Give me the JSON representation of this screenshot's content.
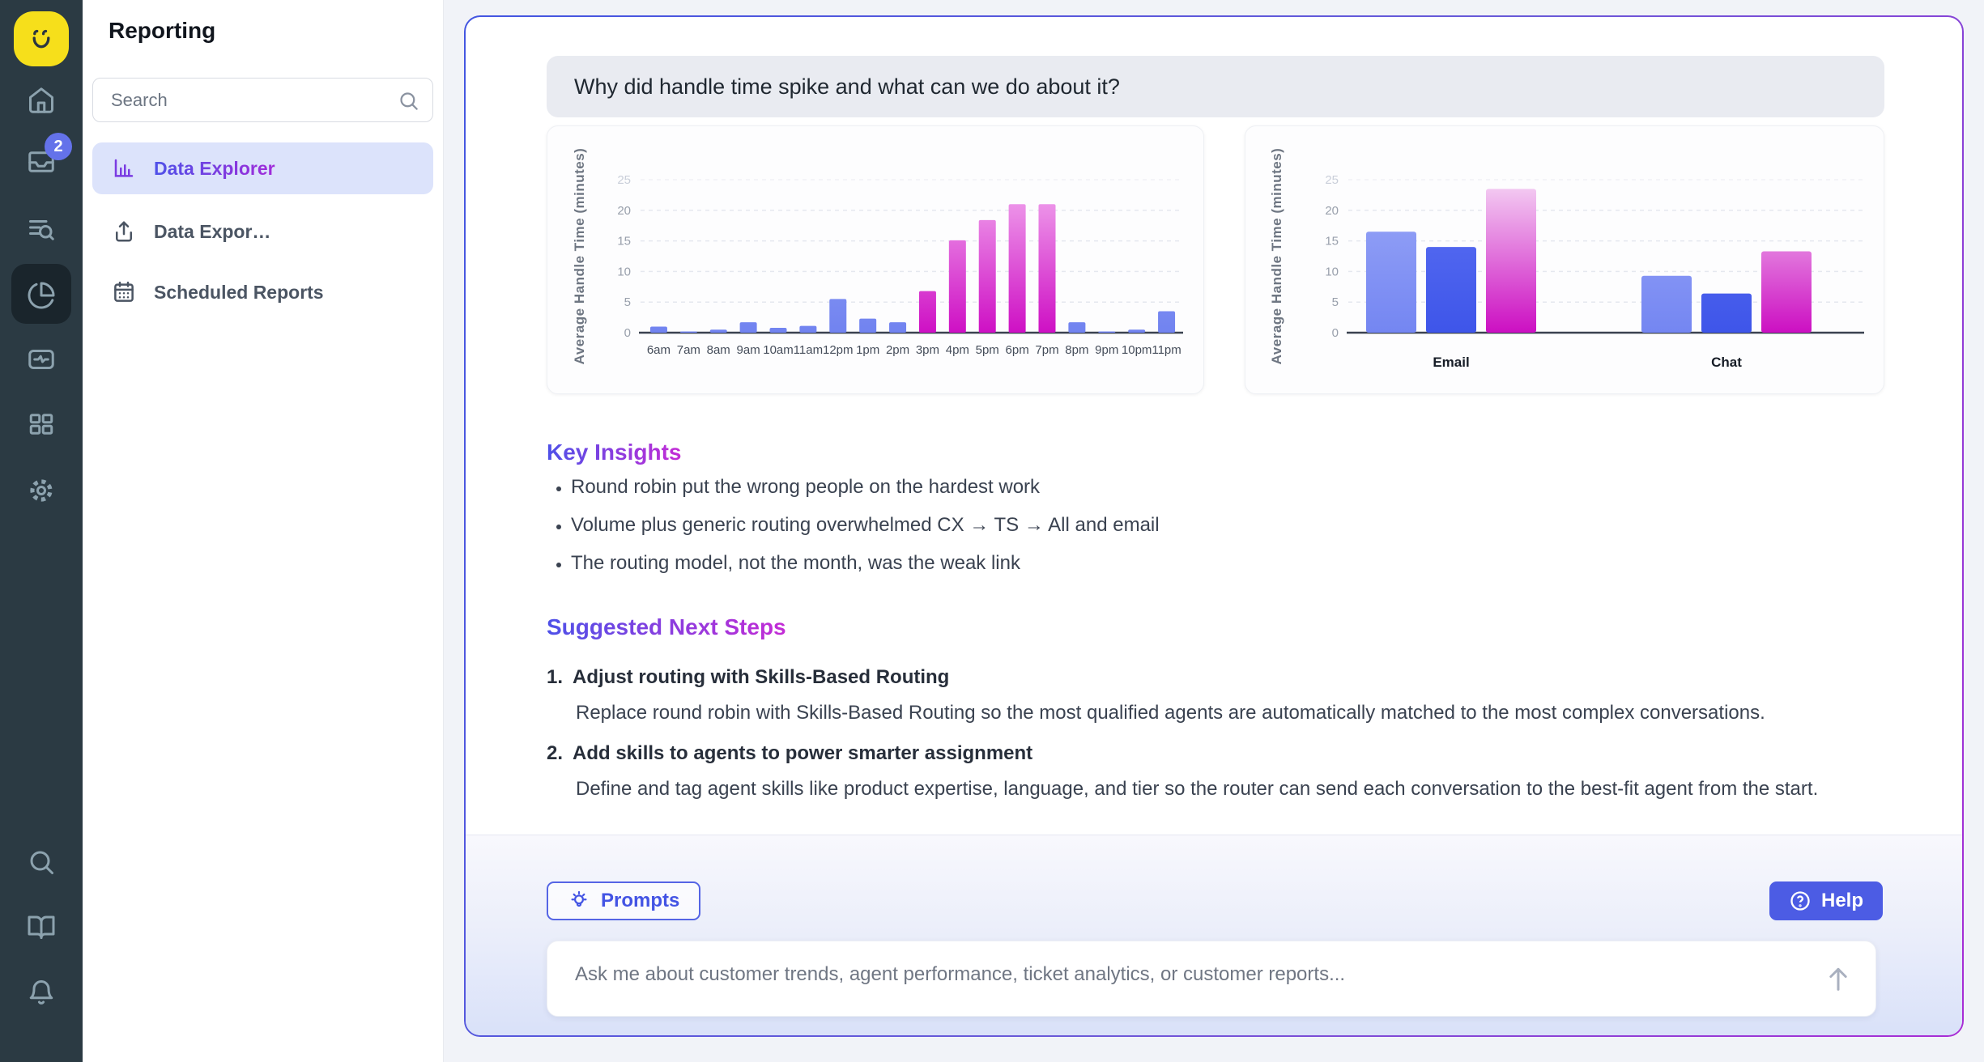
{
  "rail": {
    "logo": "smiley-logo",
    "inbox_badge": "2",
    "icons_top": [
      "home",
      "inbox",
      "list-search",
      "pie-chart",
      "monitor",
      "grid",
      "settings"
    ],
    "icons_bottom": [
      "search",
      "book",
      "bell"
    ],
    "active_icon": "pie-chart"
  },
  "sidebar": {
    "title": "Reporting",
    "search_placeholder": "Search",
    "items": [
      {
        "label": "Data Explorer",
        "icon": "bar-chart",
        "active": true
      },
      {
        "label": "Data Expor…",
        "icon": "upload",
        "active": false
      },
      {
        "label": "Scheduled Reports",
        "icon": "calendar",
        "active": false
      }
    ]
  },
  "conversation": {
    "question": "Why did handle time spike and what can we do about it?",
    "key_insights": {
      "heading": "Key Insights",
      "bullets": [
        "Round robin put the wrong people on the hardest work",
        "Volume plus generic routing overwhelmed CX → TS → All and email",
        "The routing model, not the month, was the weak link"
      ]
    },
    "next_steps": {
      "heading": "Suggested Next Steps",
      "steps": [
        {
          "number": "1.",
          "title": "Adjust routing with Skills-Based Routing",
          "description": "Replace round robin with Skills-Based Routing so the most qualified agents are automatically matched to the most complex conversations."
        },
        {
          "number": "2.",
          "title": "Add skills to agents to power smarter assignment",
          "description": "Define and tag agent skills like product expertise, language, and tier so the router can send each conversation to the best-fit agent from the start."
        }
      ]
    }
  },
  "footer": {
    "prompts_label": "Prompts",
    "help_label": "Help",
    "input_placeholder": "Ask me about customer trends, agent performance, ticket analytics, or customer reports..."
  },
  "colors": {
    "accent_blue": "#4C5CE4",
    "accent_purple": "#A82CD5",
    "sidebar_bg": "#2B3A43",
    "logo_yellow": "#F6DF1B",
    "bar_blue_light": "#8B9BF5",
    "bar_blue": "#4A60EC",
    "bar_magenta": "#D013C6",
    "active_item_bg": "#DCE3FB"
  },
  "chart_data": [
    {
      "type": "bar",
      "title": "",
      "xlabel": "",
      "ylabel": "Average Handle Time (minutes)",
      "ylim": [
        0,
        25
      ],
      "yticks": [
        0,
        5,
        10,
        15,
        20,
        25
      ],
      "grid": true,
      "legend": "none",
      "categories": [
        "6am",
        "7am",
        "8am",
        "9am",
        "10am",
        "11am",
        "12pm",
        "1pm",
        "2pm",
        "3pm",
        "4pm",
        "5pm",
        "6pm",
        "7pm",
        "8pm",
        "9pm",
        "10pm",
        "11pm"
      ],
      "values": [
        1.0,
        0.2,
        0.5,
        1.7,
        0.8,
        1.1,
        5.5,
        2.3,
        1.7,
        6.8,
        15.1,
        18.4,
        21,
        21,
        1.7,
        0.2,
        0.5,
        3.5
      ],
      "highlighted_categories": [
        "3pm",
        "4pm",
        "5pm",
        "6pm",
        "7pm"
      ],
      "bar_color_default": "#7B8CF2",
      "bar_color_highlight": "#D013C6"
    },
    {
      "type": "bar",
      "grouping": "grouped",
      "title": "",
      "xlabel": "",
      "ylabel": "Average Handle Time (minutes)",
      "ylim": [
        0,
        25
      ],
      "yticks": [
        0,
        5,
        10,
        15,
        20,
        25
      ],
      "grid": true,
      "legend": "none",
      "categories": [
        "Email",
        "Chat"
      ],
      "series": [
        {
          "name": "",
          "color": "#8B9BF5",
          "values": [
            16.5,
            9.3
          ]
        },
        {
          "name": "",
          "color": "#4A60EC",
          "values": [
            14,
            6.4
          ]
        },
        {
          "name": "",
          "color": "#D316C8",
          "values": [
            23.5,
            13.3
          ]
        }
      ]
    }
  ]
}
